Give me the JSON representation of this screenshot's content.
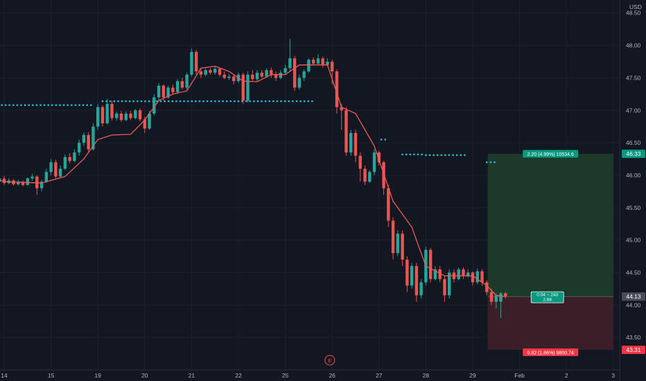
{
  "chart_data": {
    "type": "candlestick",
    "currency": "USD",
    "y_ticks": [
      "48.50",
      "48.00",
      "47.50",
      "47.00",
      "46.50",
      "46.00",
      "45.50",
      "45.00",
      "44.50",
      "44.00",
      "43.50"
    ],
    "ylim": [
      43.0,
      48.7
    ],
    "x_ticks": [
      {
        "label": "14",
        "t": 0
      },
      {
        "label": "15",
        "t": 1
      },
      {
        "label": "19",
        "t": 2
      },
      {
        "label": "20",
        "t": 3
      },
      {
        "label": "21",
        "t": 4
      },
      {
        "label": "22",
        "t": 5
      },
      {
        "label": "25",
        "t": 6
      },
      {
        "label": "26",
        "t": 7
      },
      {
        "label": "27",
        "t": 8
      },
      {
        "label": "28",
        "t": 9
      },
      {
        "label": "29",
        "t": 10
      },
      {
        "label": "Feb",
        "t": 11
      },
      {
        "label": "2",
        "t": 12
      },
      {
        "label": "3",
        "t": 13
      }
    ],
    "candles": [
      [
        -0.9,
        46.35,
        46.15,
        46.4,
        46.05
      ],
      [
        -0.8,
        46.15,
        45.98,
        46.2,
        45.92
      ],
      [
        -0.7,
        45.98,
        45.88,
        46.02,
        45.82
      ],
      [
        -0.6,
        45.88,
        45.95,
        46.0,
        45.85
      ],
      [
        -0.5,
        45.95,
        45.84,
        45.99,
        45.8
      ],
      [
        -0.4,
        45.84,
        45.92,
        45.96,
        45.82
      ],
      [
        -0.3,
        45.92,
        45.86,
        45.95,
        45.83
      ],
      [
        -0.2,
        45.86,
        45.9,
        45.93,
        45.84
      ],
      [
        -0.1,
        45.9,
        45.95,
        45.98,
        45.88
      ],
      [
        0.0,
        45.95,
        45.88,
        45.99,
        45.85
      ],
      [
        0.1,
        45.88,
        45.92,
        45.95,
        45.86
      ],
      [
        0.2,
        45.92,
        45.86,
        45.94,
        45.84
      ],
      [
        0.3,
        45.86,
        45.9,
        45.93,
        45.84
      ],
      [
        0.4,
        45.9,
        45.85,
        45.92,
        45.83
      ],
      [
        0.5,
        45.85,
        45.95,
        45.97,
        45.84
      ],
      [
        0.6,
        45.95,
        45.98,
        46.02,
        45.92
      ],
      [
        0.7,
        45.98,
        45.8,
        46.0,
        45.7
      ],
      [
        0.8,
        45.8,
        45.9,
        45.93,
        45.75
      ],
      [
        0.9,
        45.9,
        46.05,
        46.1,
        45.88
      ],
      [
        1.0,
        46.05,
        46.2,
        46.25,
        46.0
      ],
      [
        1.1,
        46.2,
        45.98,
        46.24,
        45.95
      ],
      [
        1.2,
        45.98,
        46.1,
        46.15,
        45.96
      ],
      [
        1.3,
        46.1,
        46.28,
        46.32,
        46.08
      ],
      [
        1.4,
        46.28,
        46.22,
        46.34,
        46.18
      ],
      [
        1.5,
        46.22,
        46.35,
        46.4,
        46.2
      ],
      [
        1.6,
        46.35,
        46.5,
        46.55,
        46.3
      ],
      [
        1.7,
        46.5,
        46.62,
        46.66,
        46.45
      ],
      [
        1.8,
        46.62,
        46.4,
        46.66,
        46.36
      ],
      [
        1.9,
        46.4,
        46.75,
        46.8,
        46.38
      ],
      [
        2.0,
        46.75,
        47.05,
        47.1,
        46.7
      ],
      [
        2.1,
        47.05,
        46.8,
        47.08,
        46.75
      ],
      [
        2.2,
        46.8,
        47.1,
        47.18,
        46.78
      ],
      [
        2.3,
        47.1,
        46.88,
        47.14,
        46.84
      ],
      [
        2.4,
        46.88,
        46.95,
        46.98,
        46.84
      ],
      [
        2.5,
        46.95,
        46.85,
        46.99,
        46.82
      ],
      [
        2.6,
        46.85,
        46.95,
        46.98,
        46.83
      ],
      [
        2.7,
        46.95,
        46.88,
        46.99,
        46.85
      ],
      [
        2.8,
        46.88,
        47.0,
        47.02,
        46.86
      ],
      [
        2.9,
        47.0,
        46.86,
        47.03,
        46.83
      ],
      [
        3.0,
        46.86,
        46.72,
        46.9,
        46.65
      ],
      [
        3.1,
        46.72,
        46.95,
        46.99,
        46.7
      ],
      [
        3.2,
        46.95,
        47.2,
        47.25,
        46.92
      ],
      [
        3.3,
        47.2,
        47.38,
        47.42,
        47.15
      ],
      [
        3.4,
        47.38,
        47.2,
        47.4,
        47.15
      ],
      [
        3.5,
        47.2,
        47.35,
        47.38,
        47.18
      ],
      [
        3.6,
        47.35,
        47.28,
        47.4,
        47.24
      ],
      [
        3.7,
        47.28,
        47.45,
        47.48,
        47.25
      ],
      [
        3.8,
        47.45,
        47.35,
        47.5,
        47.32
      ],
      [
        3.9,
        47.35,
        47.55,
        47.58,
        47.32
      ],
      [
        4.0,
        47.55,
        47.9,
        47.95,
        47.52
      ],
      [
        4.1,
        47.9,
        47.6,
        47.93,
        47.55
      ],
      [
        4.2,
        47.6,
        47.55,
        47.64,
        47.5
      ],
      [
        4.3,
        47.55,
        47.62,
        47.65,
        47.52
      ],
      [
        4.4,
        47.62,
        47.58,
        47.65,
        47.55
      ],
      [
        4.5,
        47.58,
        47.64,
        47.67,
        47.55
      ],
      [
        4.6,
        47.64,
        47.55,
        47.66,
        47.52
      ],
      [
        4.7,
        47.55,
        47.5,
        47.6,
        47.48
      ],
      [
        4.8,
        47.5,
        47.52,
        47.56,
        47.47
      ],
      [
        4.9,
        47.52,
        47.45,
        47.55,
        47.4
      ],
      [
        5.0,
        47.45,
        47.55,
        47.58,
        47.42
      ],
      [
        5.1,
        47.55,
        47.15,
        47.58,
        47.1
      ],
      [
        5.2,
        47.15,
        47.55,
        47.6,
        47.12
      ],
      [
        5.3,
        47.55,
        47.48,
        47.62,
        47.45
      ],
      [
        5.4,
        47.48,
        47.58,
        47.62,
        47.45
      ],
      [
        5.5,
        47.58,
        47.52,
        47.62,
        47.5
      ],
      [
        5.6,
        47.52,
        47.62,
        47.65,
        47.5
      ],
      [
        5.7,
        47.62,
        47.55,
        47.66,
        47.5
      ],
      [
        5.8,
        47.55,
        47.5,
        47.6,
        47.45
      ],
      [
        5.9,
        47.5,
        47.58,
        47.62,
        47.48
      ],
      [
        6.0,
        47.58,
        47.65,
        47.7,
        47.55
      ],
      [
        6.1,
        47.65,
        47.8,
        48.1,
        47.6
      ],
      [
        6.2,
        47.8,
        47.35,
        47.84,
        47.3
      ],
      [
        6.3,
        47.35,
        47.5,
        47.55,
        47.32
      ],
      [
        6.4,
        47.5,
        47.6,
        47.63,
        47.45
      ],
      [
        6.5,
        47.6,
        47.78,
        47.8,
        47.58
      ],
      [
        6.6,
        47.78,
        47.72,
        47.82,
        47.7
      ],
      [
        6.7,
        47.72,
        47.8,
        47.86,
        47.7
      ],
      [
        6.8,
        47.8,
        47.7,
        47.83,
        47.66
      ],
      [
        6.9,
        47.7,
        47.75,
        47.8,
        47.68
      ],
      [
        7.0,
        47.75,
        47.6,
        47.78,
        47.4
      ],
      [
        7.1,
        47.6,
        47.05,
        47.63,
        46.95
      ],
      [
        7.2,
        47.05,
        47.0,
        47.1,
        46.7
      ],
      [
        7.3,
        47.0,
        46.35,
        47.05,
        46.3
      ],
      [
        7.4,
        46.35,
        46.65,
        46.7,
        46.3
      ],
      [
        7.5,
        46.65,
        46.3,
        46.7,
        46.2
      ],
      [
        7.6,
        46.3,
        46.1,
        46.35,
        45.9
      ],
      [
        7.7,
        46.1,
        45.9,
        46.15,
        45.85
      ],
      [
        7.8,
        45.9,
        46.05,
        46.08,
        45.88
      ],
      [
        7.9,
        46.05,
        46.35,
        46.4,
        46.0
      ],
      [
        8.0,
        46.35,
        46.2,
        46.38,
        46.15
      ],
      [
        8.1,
        46.2,
        45.8,
        46.22,
        45.7
      ],
      [
        8.2,
        45.8,
        45.3,
        45.85,
        45.2
      ],
      [
        8.3,
        45.3,
        44.8,
        45.35,
        44.7
      ],
      [
        8.4,
        44.8,
        45.1,
        45.15,
        44.75
      ],
      [
        8.5,
        45.1,
        44.7,
        45.15,
        44.6
      ],
      [
        8.6,
        44.7,
        44.3,
        44.75,
        44.2
      ],
      [
        8.7,
        44.3,
        44.6,
        44.65,
        44.25
      ],
      [
        8.8,
        44.6,
        44.15,
        44.65,
        44.05
      ],
      [
        8.9,
        44.15,
        44.35,
        44.4,
        44.1
      ],
      [
        9.0,
        44.35,
        44.85,
        44.9,
        44.3
      ],
      [
        9.1,
        44.85,
        44.4,
        44.88,
        44.35
      ],
      [
        9.2,
        44.4,
        44.55,
        44.6,
        44.38
      ],
      [
        9.3,
        44.55,
        44.4,
        44.6,
        44.35
      ],
      [
        9.4,
        44.4,
        44.15,
        44.45,
        44.05
      ],
      [
        9.5,
        44.15,
        44.5,
        44.55,
        44.1
      ],
      [
        9.6,
        44.5,
        44.4,
        44.55,
        44.35
      ],
      [
        9.7,
        44.4,
        44.55,
        44.58,
        44.38
      ],
      [
        9.8,
        44.55,
        44.45,
        44.58,
        44.4
      ],
      [
        9.9,
        44.45,
        44.5,
        44.55,
        44.42
      ],
      [
        10.0,
        44.5,
        44.35,
        44.52,
        44.3
      ],
      [
        10.1,
        44.35,
        44.52,
        44.56,
        44.32
      ],
      [
        10.2,
        44.52,
        44.35,
        44.55,
        44.3
      ],
      [
        10.3,
        44.35,
        44.2,
        44.38,
        44.15
      ],
      [
        10.4,
        44.2,
        44.05,
        44.25,
        44.0
      ],
      [
        10.5,
        44.05,
        44.15,
        44.18,
        43.95
      ],
      [
        10.6,
        44.05,
        44.18,
        44.2,
        43.8
      ],
      [
        10.7,
        44.18,
        44.13,
        44.2,
        44.1
      ]
    ],
    "ma_line": [
      [
        -0.9,
        46.1
      ],
      [
        0.0,
        45.9
      ],
      [
        0.8,
        45.88
      ],
      [
        1.3,
        45.98
      ],
      [
        1.7,
        46.25
      ],
      [
        2.0,
        46.55
      ],
      [
        2.3,
        46.62
      ],
      [
        2.7,
        46.63
      ],
      [
        3.0,
        46.85
      ],
      [
        3.3,
        47.15
      ],
      [
        3.6,
        47.25
      ],
      [
        3.9,
        47.3
      ],
      [
        4.2,
        47.65
      ],
      [
        4.5,
        47.68
      ],
      [
        4.8,
        47.6
      ],
      [
        5.1,
        47.45
      ],
      [
        5.4,
        47.44
      ],
      [
        5.7,
        47.55
      ],
      [
        6.0,
        47.55
      ],
      [
        6.3,
        47.7
      ],
      [
        6.7,
        47.7
      ],
      [
        6.9,
        47.7
      ],
      [
        7.2,
        47.05
      ],
      [
        7.5,
        46.95
      ],
      [
        7.9,
        46.45
      ],
      [
        8.3,
        45.6
      ],
      [
        8.7,
        45.2
      ],
      [
        9.0,
        44.6
      ],
      [
        9.4,
        44.45
      ],
      [
        9.8,
        44.45
      ],
      [
        10.0,
        44.45
      ],
      [
        10.3,
        44.3
      ],
      [
        10.5,
        44.15
      ],
      [
        10.7,
        44.13
      ]
    ],
    "dot_levels": [
      {
        "start": -1.0,
        "end": -0.8,
        "price": 46.83
      },
      {
        "start": -0.3,
        "end": 1.9,
        "price": 47.08
      },
      {
        "start": 2.1,
        "end": 6.6,
        "price": 47.14
      },
      {
        "start": 8.05,
        "end": 8.2,
        "price": 46.55
      },
      {
        "start": 8.5,
        "end": 8.95,
        "price": 46.32
      },
      {
        "start": 9.0,
        "end": 9.9,
        "price": 46.31
      },
      {
        "start": 10.3,
        "end": 10.5,
        "price": 46.2
      }
    ],
    "position": {
      "start": 10.32,
      "end": 13.0,
      "entry": 44.13,
      "target": 46.33,
      "stop": 43.31,
      "target_label": "2.20 (4.99%) 10534.6",
      "stop_label": "0.82 (1.86%) 9800.74",
      "center_line1": "0.04 ~ 243",
      "center_line2": "2.68"
    },
    "price_tags": {
      "target": "46.33",
      "entry": "44.13",
      "stop": "43.31"
    },
    "earnings_marker": {
      "label": "E",
      "t": 6.95
    },
    "colors": {
      "background": "#131722",
      "up": "#26a69a",
      "down": "#ef5350",
      "ma": "#f05a5a",
      "dots": "#22c1d6",
      "grid": "#1e222d",
      "text": "#b2b5be",
      "profit_fill": "#1b3a2a",
      "loss_fill": "#3a1f28",
      "profit_tag": "#089981",
      "loss_tag": "#f23645",
      "entry_tag": "#4a4e5a"
    }
  }
}
